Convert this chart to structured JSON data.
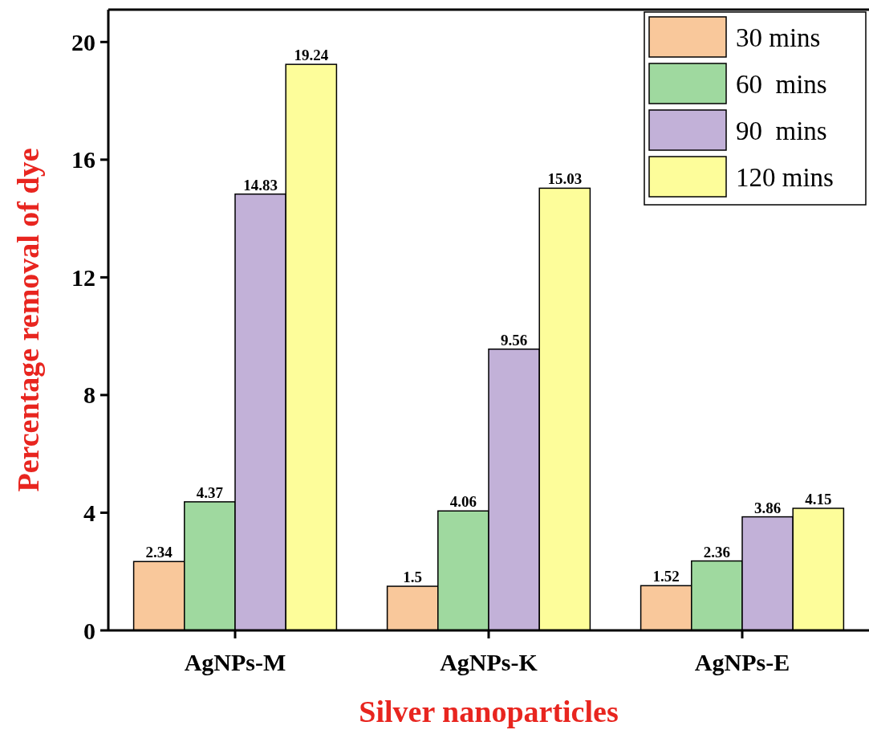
{
  "chart_data": {
    "type": "bar",
    "xlabel": "Silver nanoparticles",
    "ylabel": "Percentage removal of dye",
    "categories": [
      "AgNPs-M",
      "AgNPs-K",
      "AgNPs-E"
    ],
    "series": [
      {
        "name": "30 mins",
        "color": "#f9c89b",
        "values": [
          2.34,
          1.5,
          1.52
        ]
      },
      {
        "name": "60  mins",
        "color": "#9fd99f",
        "values": [
          4.37,
          4.06,
          2.36
        ]
      },
      {
        "name": "90  mins",
        "color": "#c2b1d8",
        "values": [
          14.83,
          9.56,
          3.86
        ]
      },
      {
        "name": "120 mins",
        "color": "#fdfd9a",
        "values": [
          19.24,
          15.03,
          4.15
        ]
      }
    ],
    "ylim": [
      0,
      21.1
    ],
    "yticks": [
      0,
      4,
      8,
      12,
      16,
      20
    ],
    "data_labels": true,
    "legend": "top right",
    "grid": false
  }
}
